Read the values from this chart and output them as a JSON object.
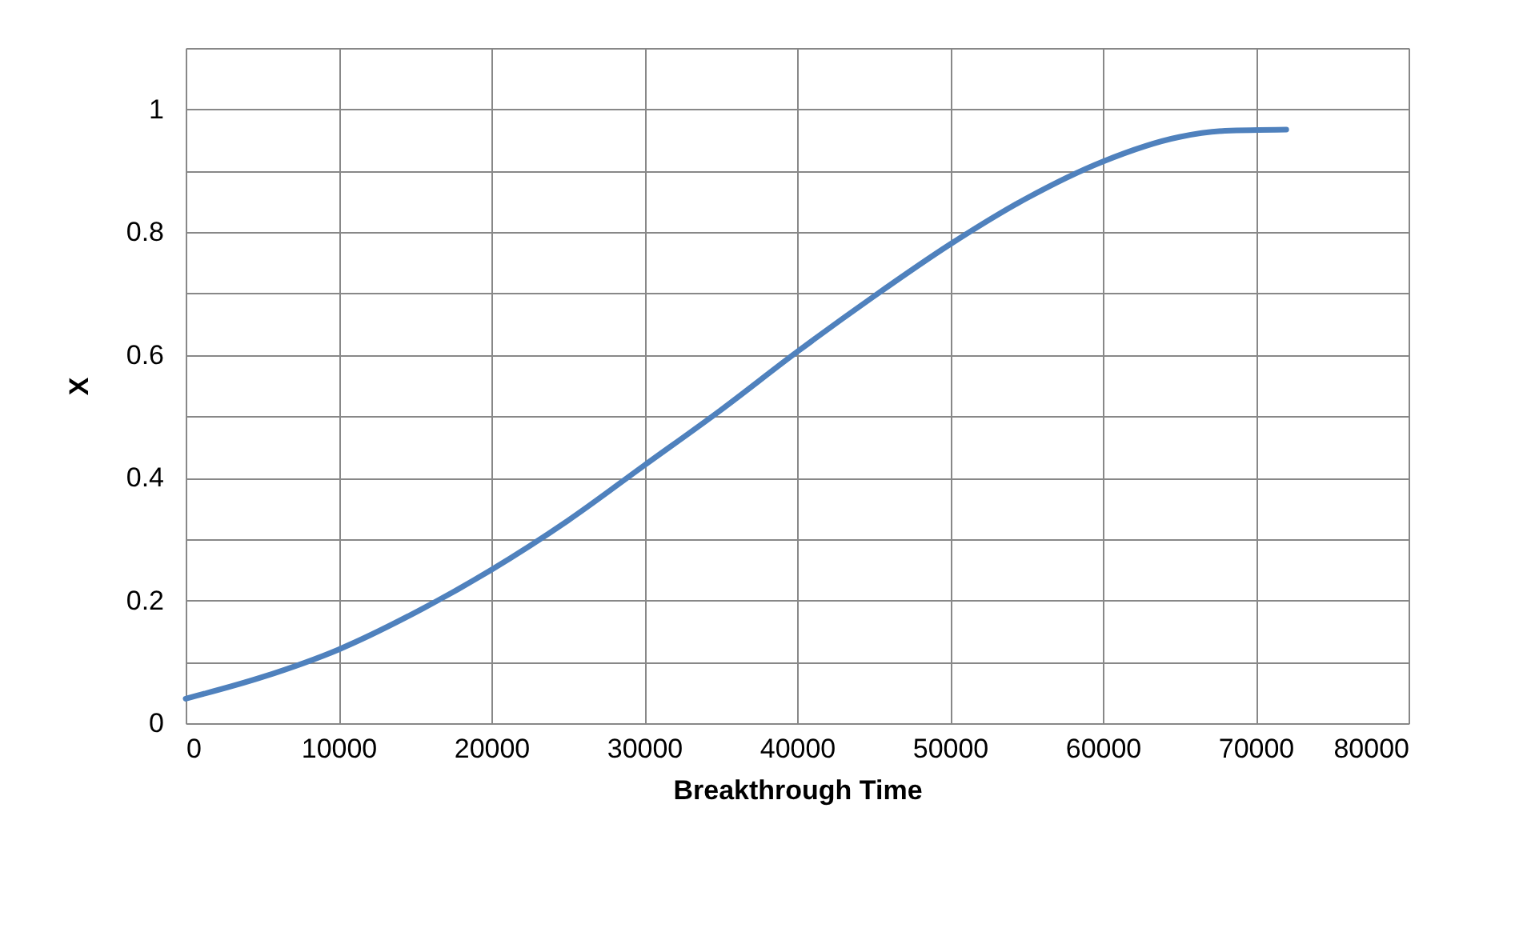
{
  "chart_data": {
    "type": "line",
    "xlabel": "Breakthrough Time",
    "ylabel": "X",
    "x": [
      0,
      5000,
      10000,
      15000,
      20000,
      25000,
      30000,
      35000,
      40000,
      45000,
      50000,
      55000,
      60000,
      65000,
      68000,
      72000
    ],
    "series": [
      {
        "color": "#4f81bd",
        "values": [
          0.04,
          0.075,
          0.12,
          0.18,
          0.25,
          0.33,
          0.42,
          0.51,
          0.605,
          0.695,
          0.78,
          0.855,
          0.915,
          0.955,
          0.965,
          0.967
        ]
      }
    ],
    "xlim": [
      0,
      80000
    ],
    "xticks": [
      0,
      10000,
      20000,
      30000,
      40000,
      50000,
      60000,
      70000,
      80000
    ],
    "ylim": [
      0,
      1.1
    ],
    "yticks": [
      0,
      {
        "value": 0.1,
        "label": null
      },
      0.2,
      {
        "value": 0.3,
        "label": null
      },
      0.4,
      {
        "value": 0.5,
        "label": null
      },
      0.6,
      {
        "value": 0.7,
        "label": null
      },
      0.8,
      {
        "value": 0.9,
        "label": null
      },
      1,
      {
        "value": 1.1,
        "label": null
      }
    ],
    "grid": true,
    "marker": "none",
    "line_style": "solid"
  }
}
